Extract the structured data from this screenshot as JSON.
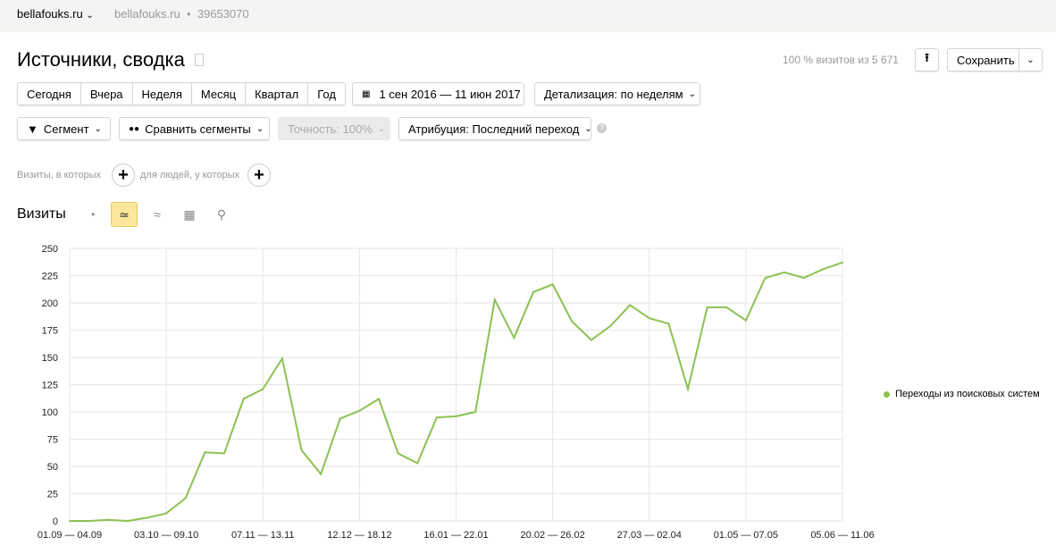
{
  "topbar": {
    "site": "bellafouks.ru",
    "site2": "bellafouks.ru",
    "separator": "•",
    "counter_id": "39653070"
  },
  "header": {
    "title": "Источники, сводка",
    "visits_share": "100 % визитов из 5 671",
    "save_label": "Сохранить"
  },
  "periods": [
    "Сегодня",
    "Вчера",
    "Неделя",
    "Месяц",
    "Квартал",
    "Год"
  ],
  "date_range": "1 сен 2016 — 11 июн 2017",
  "detail": "Детализация: по неделям",
  "filters": {
    "segment": "Сегмент",
    "compare": "Сравнить сегменты",
    "accuracy": "Точность: 100%",
    "attribution": "Атрибуция: Последний переход",
    "help": "?"
  },
  "conditions": {
    "visits_label": "Визиты, в которых",
    "people_label": "для людей, у которых",
    "add": "+"
  },
  "chart_section": {
    "title": "Визиты",
    "types": [
      "pie-chart-icon",
      "line-chart-icon",
      "area-chart-icon",
      "bar-chart-icon",
      "map-icon"
    ],
    "active_type": "line-chart-icon",
    "accent": "#fbe79b"
  },
  "chart_data": {
    "type": "line",
    "ylim": [
      0,
      250
    ],
    "y_ticks": [
      0,
      25,
      50,
      75,
      100,
      125,
      150,
      175,
      200,
      225,
      250
    ],
    "x_tick_labels": [
      "01.09 — 04.09",
      "03.10 — 09.10",
      "07.11 — 13.11",
      "12.12 — 18.12",
      "16.01 — 22.01",
      "20.02 — 26.02",
      "27.03 — 02.04",
      "01.05 — 07.05",
      "05.06 — 11.06"
    ],
    "x_tick_every_n_weeks": 5,
    "grid": true,
    "legend_position": "right",
    "series": [
      {
        "name": "Переходы из поисковых систем",
        "color": "#8cc152",
        "values": [
          0,
          0,
          1,
          0,
          3,
          7,
          21,
          63,
          62,
          112,
          121,
          149,
          65,
          43,
          94,
          101,
          112,
          62,
          53,
          95,
          96,
          100,
          203,
          168,
          210,
          217,
          183,
          166,
          179,
          198,
          186,
          181,
          121,
          196,
          196,
          184,
          223,
          228,
          223,
          231,
          237
        ]
      }
    ]
  }
}
